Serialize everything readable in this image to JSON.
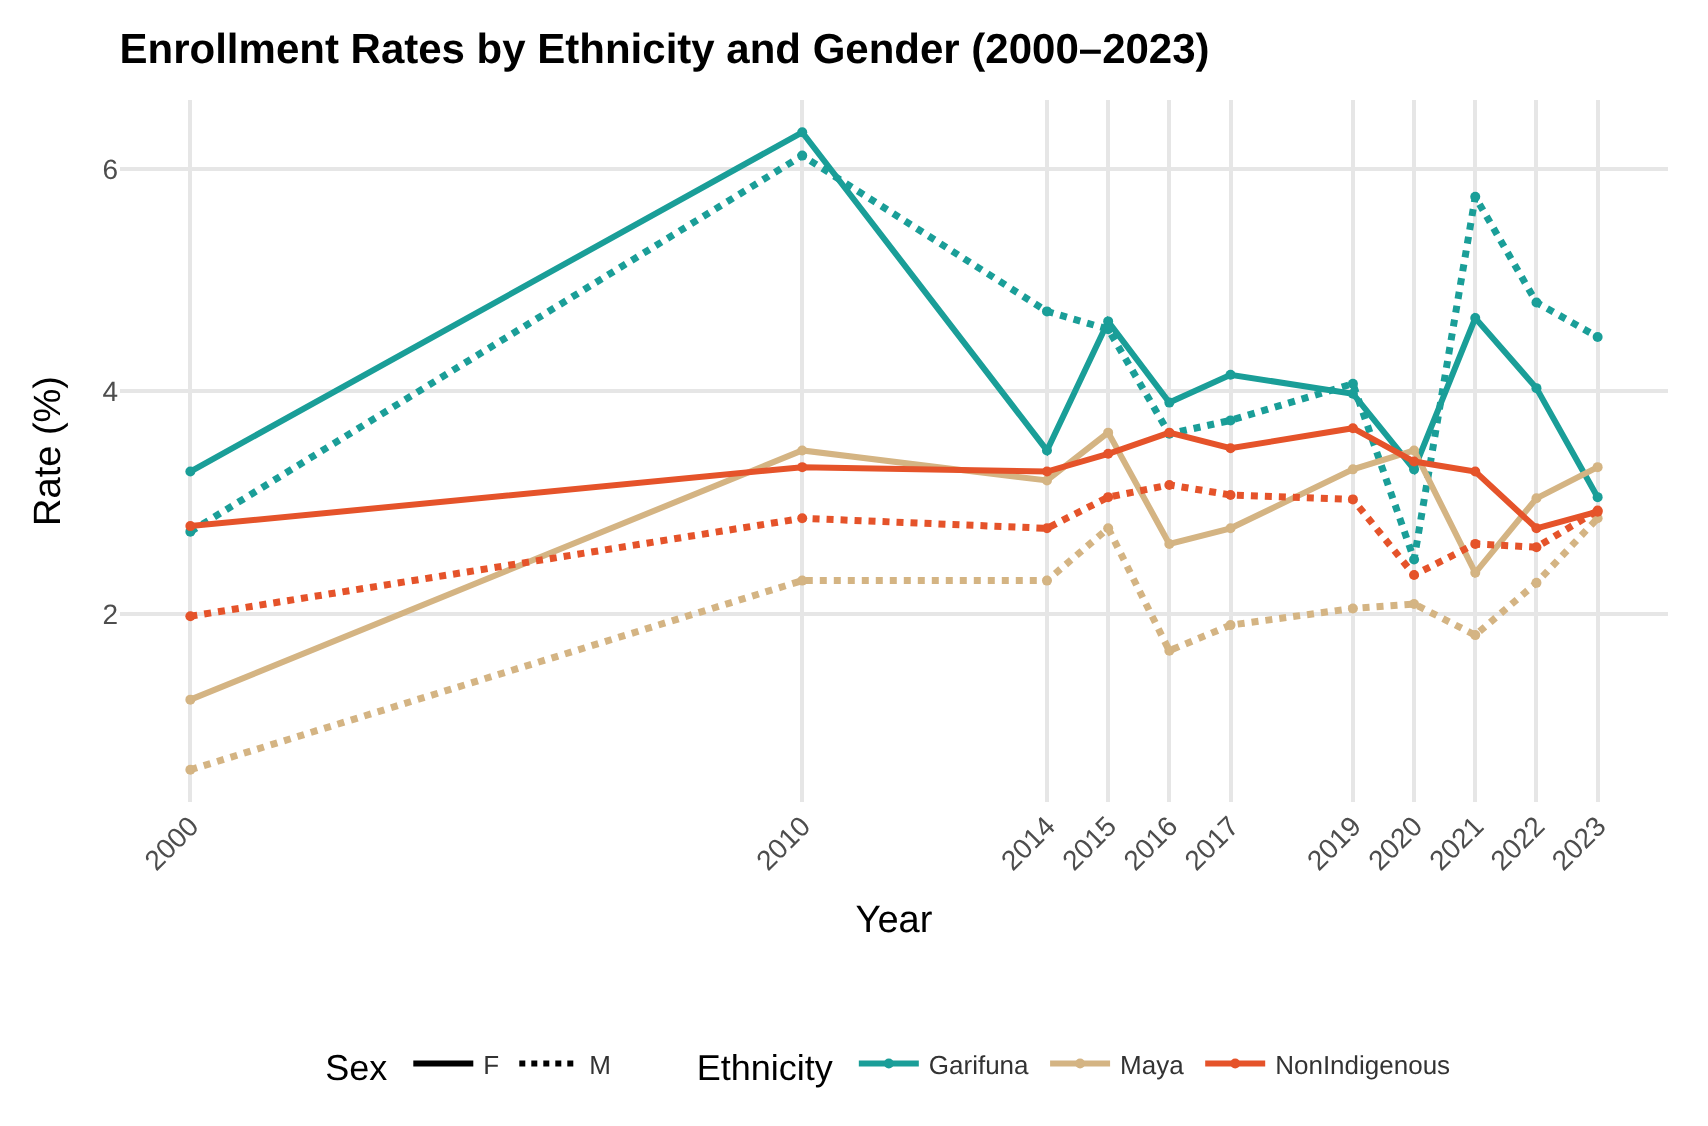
{
  "chart_data": {
    "type": "line",
    "title": "Enrollment Rates by Ethnicity and Gender (2000–2023)",
    "xlabel": "Year",
    "ylabel": "Rate (%)",
    "x": [
      2000,
      2010,
      2014,
      2015,
      2016,
      2017,
      2019,
      2020,
      2021,
      2022,
      2023
    ],
    "xlim": [
      1998.85,
      2024.15
    ],
    "xticks": [
      2000,
      2010,
      2014,
      2015,
      2016,
      2017,
      2019,
      2020,
      2021,
      2022,
      2023
    ],
    "ylim": [
      0.31,
      6.62
    ],
    "yticks": [
      2,
      4,
      6
    ],
    "grid": true,
    "legend": "bottom",
    "marker": "circle",
    "legend_title": "Ethnicity",
    "annotations": [
      "Sex",
      "F",
      "M"
    ],
    "series": [
      {
        "name": "Garifuna",
        "line_style": "solid",
        "color": "#1a9e98",
        "values": [
          3.28,
          6.33,
          3.47,
          4.63,
          3.9,
          4.15,
          3.98,
          3.3,
          4.66,
          4.03,
          3.05
        ]
      },
      {
        "line_style": "dotted",
        "color": "#1a9e98",
        "values": [
          2.74,
          6.12,
          4.72,
          4.56,
          3.62,
          3.74,
          4.07,
          2.49,
          5.75,
          4.8,
          4.49
        ]
      },
      {
        "name": "Maya",
        "line_style": "solid",
        "color": "#d4b483",
        "values": [
          1.23,
          3.47,
          3.2,
          3.63,
          2.63,
          2.77,
          3.3,
          3.47,
          2.37,
          3.04,
          3.32
        ]
      },
      {
        "line_style": "dotted",
        "color": "#d4b483",
        "values": [
          0.6,
          2.3,
          2.3,
          2.77,
          1.67,
          1.9,
          2.05,
          2.09,
          1.81,
          2.28,
          2.86
        ]
      },
      {
        "name": "NonIndigenous",
        "line_style": "solid",
        "color": "#e5532a",
        "values": [
          2.79,
          3.32,
          3.28,
          3.44,
          3.63,
          3.49,
          3.67,
          3.37,
          3.28,
          2.77,
          2.92
        ]
      },
      {
        "line_style": "dotted",
        "color": "#e5532a",
        "values": [
          1.98,
          2.86,
          2.77,
          3.05,
          3.16,
          3.07,
          3.03,
          2.35,
          2.63,
          2.6,
          2.93
        ]
      }
    ]
  }
}
